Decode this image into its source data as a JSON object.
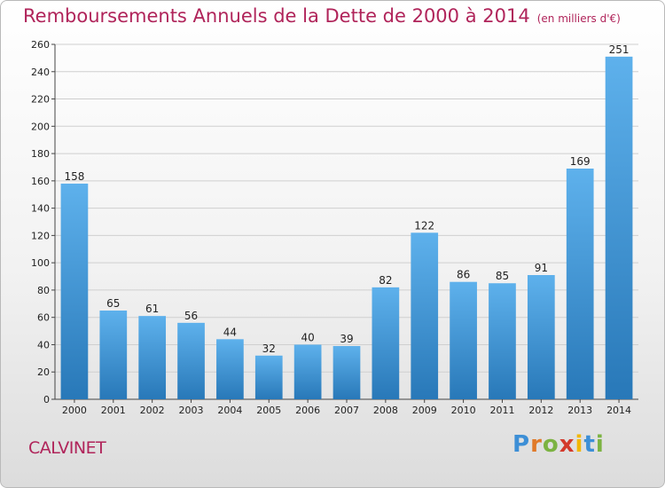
{
  "header": {
    "title": "Remboursements Annuels de la Dette de 2000 à 2014",
    "subtitle": "(en milliers d'€)"
  },
  "footer": {
    "commune": "CALVINET",
    "logo_text": "Proxiti"
  },
  "colors": {
    "title": "#b0245a",
    "bar_top": "#5eb1ec",
    "bar_bottom": "#2878b8",
    "grid": "#cfcfcf"
  },
  "chart_data": {
    "type": "bar",
    "title": "Remboursements Annuels de la Dette de 2000 à 2014",
    "subtitle": "(en milliers d'€)",
    "xlabel": "",
    "ylabel": "",
    "categories": [
      "2000",
      "2001",
      "2002",
      "2003",
      "2004",
      "2005",
      "2006",
      "2007",
      "2008",
      "2009",
      "2010",
      "2011",
      "2012",
      "2013",
      "2014"
    ],
    "values": [
      158,
      65,
      61,
      56,
      44,
      32,
      40,
      39,
      82,
      122,
      86,
      85,
      91,
      169,
      251
    ],
    "ylim": [
      0,
      260
    ],
    "yticks": [
      0,
      20,
      40,
      60,
      80,
      100,
      120,
      140,
      160,
      180,
      200,
      220,
      240,
      260
    ],
    "grid": true,
    "data_labels": true
  }
}
